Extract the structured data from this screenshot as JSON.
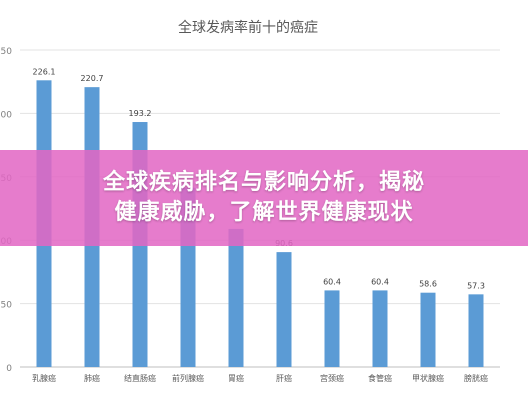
{
  "chart_data": {
    "type": "bar",
    "title": "全球发病率前十的癌症",
    "categories": [
      "乳腺癌",
      "肺癌",
      "结直肠癌",
      "前列腺癌",
      "胃癌",
      "肝癌",
      "宫颈癌",
      "食管癌",
      "甲状腺癌",
      "膀胱癌"
    ],
    "values": [
      226.1,
      220.7,
      193.2,
      141.4,
      108.9,
      90.6,
      60.4,
      60.4,
      58.6,
      57.3
    ],
    "value_labels": [
      "226.1",
      "220.7",
      "193.2",
      "",
      "",
      "90.6",
      "60.4",
      "60.4",
      "58.6",
      "57.3"
    ],
    "ylim": [
      0,
      250
    ],
    "yticks": [
      "0",
      "50",
      "100",
      "150",
      "200",
      "250"
    ],
    "grid": true,
    "bar_color": "#5b9bd5"
  },
  "overlay": {
    "line1": "全球疾病排名与影响分析，揭秘",
    "line2": "健康威胁，了解世界健康现状",
    "color": "#e266c4"
  }
}
